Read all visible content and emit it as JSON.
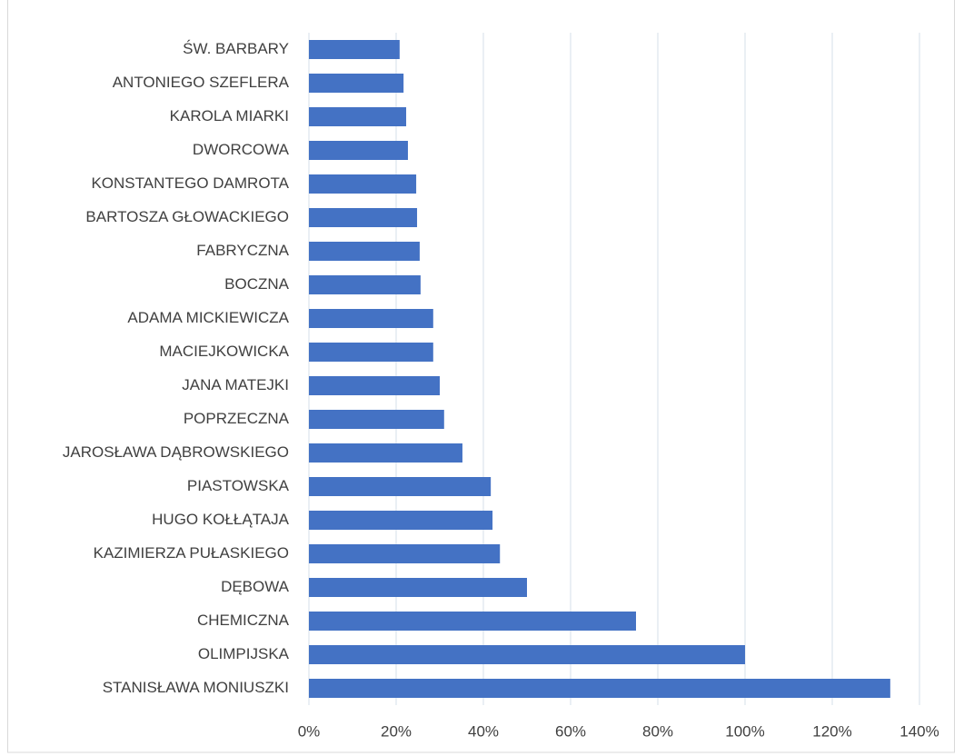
{
  "chart_data": {
    "type": "bar",
    "orientation": "horizontal",
    "categories": [
      "ŚW. BARBARY",
      "ANTONIEGO SZEFLERA",
      "KAROLA MIARKI",
      "DWORCOWA",
      "KONSTANTEGO DAMROTA",
      "BARTOSZA GŁOWACKIEGO",
      "FABRYCZNA",
      "BOCZNA",
      "ADAMA MICKIEWICZA",
      "MACIEJKOWICKA",
      "JANA MATEJKI",
      "POPRZECZNA",
      "JAROSŁAWA DĄBROWSKIEGO",
      "PIASTOWSKA",
      "HUGO KOŁŁĄTAJA",
      "KAZIMIERZA PUŁASKIEGO",
      "DĘBOWA",
      "CHEMICZNA",
      "OLIMPIJSKA",
      "STANISŁAWA MONIUSZKI"
    ],
    "values": [
      20.8,
      21.7,
      22.3,
      22.7,
      24.6,
      24.8,
      25.4,
      25.6,
      28.5,
      28.5,
      30,
      31,
      35.2,
      41.7,
      42.1,
      43.8,
      50,
      75,
      100,
      133.3
    ],
    "color": "#4472c4",
    "xlim": [
      0,
      140
    ],
    "xticks": [
      {
        "value": 0,
        "label": "0%"
      },
      {
        "value": 20,
        "label": "20%"
      },
      {
        "value": 40,
        "label": "40%"
      },
      {
        "value": 60,
        "label": "60%"
      },
      {
        "value": 80,
        "label": "80%"
      },
      {
        "value": 100,
        "label": "100%"
      },
      {
        "value": 120,
        "label": "120%"
      },
      {
        "value": 140,
        "label": "140%"
      }
    ],
    "grid": true
  }
}
